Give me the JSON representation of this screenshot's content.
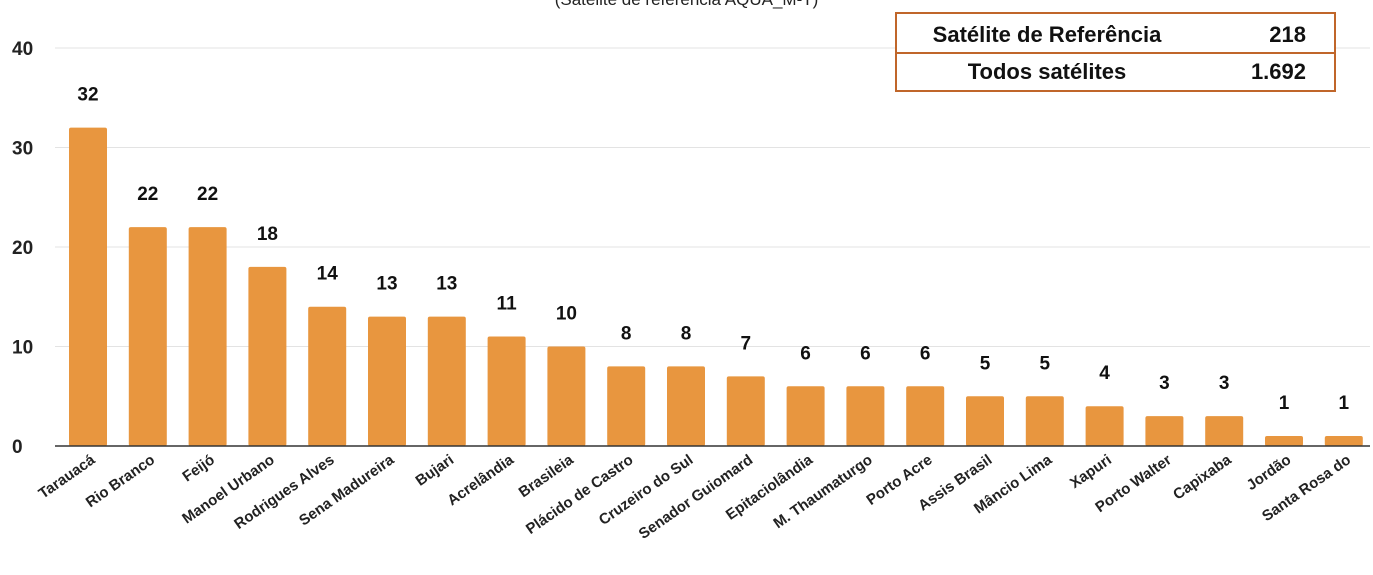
{
  "subtitle": "(Satélite de referência AQUA_M-T)",
  "reference_table": {
    "rows": [
      {
        "label": "Satélite de Referência",
        "value": "218"
      },
      {
        "label": "Todos satélites",
        "value": "1.692"
      }
    ]
  },
  "chart_data": {
    "type": "bar",
    "categories": [
      "Tarauacá",
      "Rio Branco",
      "Feijó",
      "Manoel Urbano",
      "Rodrigues Alves",
      "Sena Madureira",
      "Bujari",
      "Acrelândia",
      "Brasileia",
      "Plácido de Castro",
      "Cruzeiro do Sul",
      "Senador Guiomard",
      "Epitaciolândia",
      "M. Thaumaturgo",
      "Porto Acre",
      "Assis Brasil",
      "Mâncio Lima",
      "Xapuri",
      "Porto Walter",
      "Capixaba",
      "Jordão",
      "Santa Rosa do"
    ],
    "values": [
      32,
      22,
      22,
      18,
      14,
      13,
      13,
      11,
      10,
      8,
      8,
      7,
      6,
      6,
      6,
      5,
      5,
      4,
      3,
      3,
      1,
      1
    ],
    "ylim": [
      0,
      40
    ],
    "yticks": [
      0,
      10,
      20,
      30,
      40
    ],
    "grid": true,
    "data_labels": true,
    "bar_color": "#e8963f",
    "grid_color": "#e3e3e3",
    "axis_color": "#333333"
  }
}
